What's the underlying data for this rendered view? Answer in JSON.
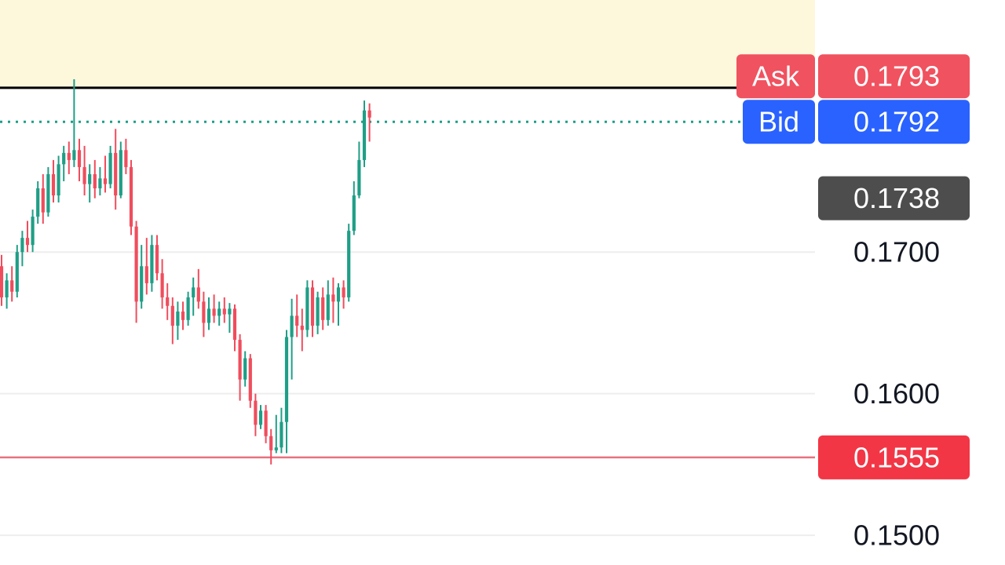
{
  "chart_data": {
    "type": "candlestick",
    "ylim": [
      0.1479,
      0.1878
    ],
    "yticks": [
      {
        "value": 0.17,
        "label": "0.1700"
      },
      {
        "value": 0.16,
        "label": "0.1600"
      },
      {
        "value": 0.15,
        "label": "0.1500"
      }
    ],
    "grid": true,
    "up_color": "#1f9e87",
    "down_color": "#ef4d5d",
    "open": [
      0.169,
      0.1668,
      0.168,
      0.1672,
      0.17,
      0.171,
      0.1705,
      0.1725,
      0.1745,
      0.1728,
      0.1755,
      0.174,
      0.1762,
      0.177,
      0.1765,
      0.1772,
      0.176,
      0.1748,
      0.1755,
      0.1745,
      0.1752,
      0.1748,
      0.177,
      0.174,
      0.1772,
      0.176,
      0.1718,
      0.1665,
      0.169,
      0.1678,
      0.1705,
      0.1685,
      0.1668,
      0.1662,
      0.1648,
      0.1658,
      0.1652,
      0.1668,
      0.1675,
      0.1665,
      0.165,
      0.166,
      0.1655,
      0.166,
      0.1656,
      0.166,
      0.1638,
      0.161,
      0.1625,
      0.1595,
      0.1578,
      0.1588,
      0.157,
      0.156,
      0.1562,
      0.158,
      0.164,
      0.1655,
      0.1648,
      0.1645,
      0.1675,
      0.1648,
      0.1668,
      0.1652,
      0.167,
      0.1665,
      0.1675,
      0.1668,
      0.1715,
      0.174,
      0.1765,
      0.18
    ],
    "high": [
      0.1698,
      0.1685,
      0.169,
      0.1705,
      0.1715,
      0.1722,
      0.173,
      0.175,
      0.1755,
      0.176,
      0.1765,
      0.1768,
      0.1775,
      0.1778,
      0.1822,
      0.178,
      0.1775,
      0.1762,
      0.1765,
      0.176,
      0.1768,
      0.1775,
      0.1787,
      0.1778,
      0.178,
      0.1765,
      0.1722,
      0.1705,
      0.171,
      0.1712,
      0.1712,
      0.1695,
      0.1678,
      0.1668,
      0.1665,
      0.1665,
      0.1672,
      0.1682,
      0.1688,
      0.1672,
      0.1668,
      0.167,
      0.1665,
      0.1668,
      0.1664,
      0.1663,
      0.1642,
      0.163,
      0.1628,
      0.16,
      0.1592,
      0.1592,
      0.1575,
      0.1585,
      0.159,
      0.1645,
      0.1667,
      0.167,
      0.166,
      0.168,
      0.168,
      0.1672,
      0.1675,
      0.168,
      0.1682,
      0.1678,
      0.168,
      0.172,
      0.175,
      0.1778,
      0.1807,
      0.1805
    ],
    "low": [
      0.1662,
      0.166,
      0.1665,
      0.1668,
      0.169,
      0.17,
      0.17,
      0.172,
      0.172,
      0.1725,
      0.1735,
      0.1735,
      0.175,
      0.1755,
      0.176,
      0.175,
      0.174,
      0.1735,
      0.1738,
      0.174,
      0.1742,
      0.1745,
      0.173,
      0.1738,
      0.1755,
      0.1712,
      0.165,
      0.166,
      0.167,
      0.1672,
      0.168,
      0.166,
      0.1652,
      0.1635,
      0.1638,
      0.1645,
      0.1648,
      0.1655,
      0.166,
      0.164,
      0.1645,
      0.165,
      0.1648,
      0.165,
      0.1643,
      0.163,
      0.1595,
      0.1605,
      0.159,
      0.157,
      0.1575,
      0.1565,
      0.155,
      0.1558,
      0.1558,
      0.1558,
      0.161,
      0.164,
      0.163,
      0.164,
      0.164,
      0.1642,
      0.1645,
      0.1648,
      0.165,
      0.1648,
      0.166,
      0.1665,
      0.1712,
      0.1738,
      0.176,
      0.1778
    ],
    "close": [
      0.1668,
      0.168,
      0.1672,
      0.17,
      0.171,
      0.1705,
      0.1725,
      0.1745,
      0.1728,
      0.1755,
      0.174,
      0.1762,
      0.177,
      0.1765,
      0.1772,
      0.176,
      0.1748,
      0.1755,
      0.1745,
      0.1752,
      0.1748,
      0.177,
      0.174,
      0.1772,
      0.176,
      0.1718,
      0.1665,
      0.169,
      0.1678,
      0.1705,
      0.1685,
      0.1668,
      0.1662,
      0.1648,
      0.1658,
      0.1652,
      0.1668,
      0.1675,
      0.1665,
      0.165,
      0.166,
      0.1655,
      0.166,
      0.1656,
      0.166,
      0.1638,
      0.161,
      0.1625,
      0.1595,
      0.1578,
      0.1588,
      0.157,
      0.156,
      0.1562,
      0.158,
      0.164,
      0.1655,
      0.1648,
      0.1645,
      0.1675,
      0.1648,
      0.1668,
      0.1652,
      0.167,
      0.1665,
      0.1675,
      0.1668,
      0.1715,
      0.174,
      0.1765,
      0.18,
      0.1795
    ],
    "levels": [
      {
        "value": 0.1816,
        "color": "#000000",
        "fill_above": "#fdf7dc"
      }
    ],
    "markers": [
      {
        "name": "Ask",
        "value": 0.1793,
        "color": "#f0525f"
      },
      {
        "name": "Bid",
        "value": 0.1792,
        "color": "#2962ff",
        "line": "dotted",
        "line_color": "#1f9e87"
      },
      {
        "value": 0.1738,
        "color": "#4d4d4d"
      },
      {
        "value": 0.1555,
        "color": "#f23645",
        "line": "solid",
        "line_color": "#e8717e"
      }
    ]
  }
}
